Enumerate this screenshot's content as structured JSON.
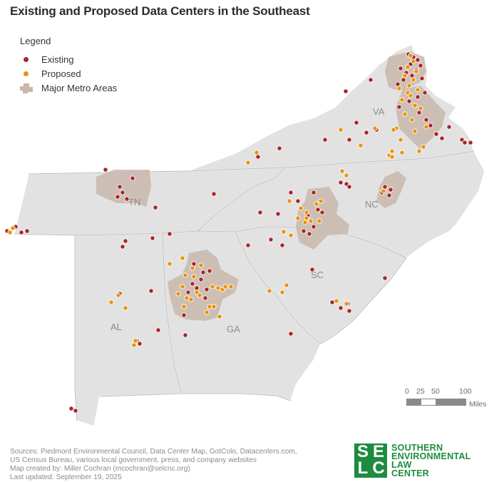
{
  "title": "Existing and Proposed Data Centers in the Southeast",
  "legend": {
    "title": "Legend",
    "existing_label": "Existing",
    "proposed_label": "Proposed",
    "metro_label": "Major Metro Areas"
  },
  "colors": {
    "existing": "#a8272a",
    "proposed": "#e9940e",
    "metro": "#c9b7ab",
    "state_fill": "#e2e2e2",
    "state_border": "#bcbcbc",
    "state_label": "#8c8c8c",
    "brand": "#1d8c3f"
  },
  "states": [
    "VA",
    "TN",
    "NC",
    "SC",
    "AL",
    "GA"
  ],
  "scale": {
    "ticks": [
      "0",
      "25",
      "50",
      "100"
    ],
    "unit": "Miles"
  },
  "sources": [
    "Sources: Piedmont Environmental Council, Data Center Map, GotColo, Datacenters.com,",
    "US Census Bureau, various local government, press, and company websites",
    "Map created by: Miller Cochran (mcochran@selcnc.org)",
    "Last updated: September 19, 2025"
  ],
  "logo": {
    "mark": [
      "S",
      "E",
      "L",
      "C"
    ],
    "lines": [
      "SOUTHERN",
      "ENVIRONMENTAL",
      "LAW",
      "CENTER"
    ]
  }
}
